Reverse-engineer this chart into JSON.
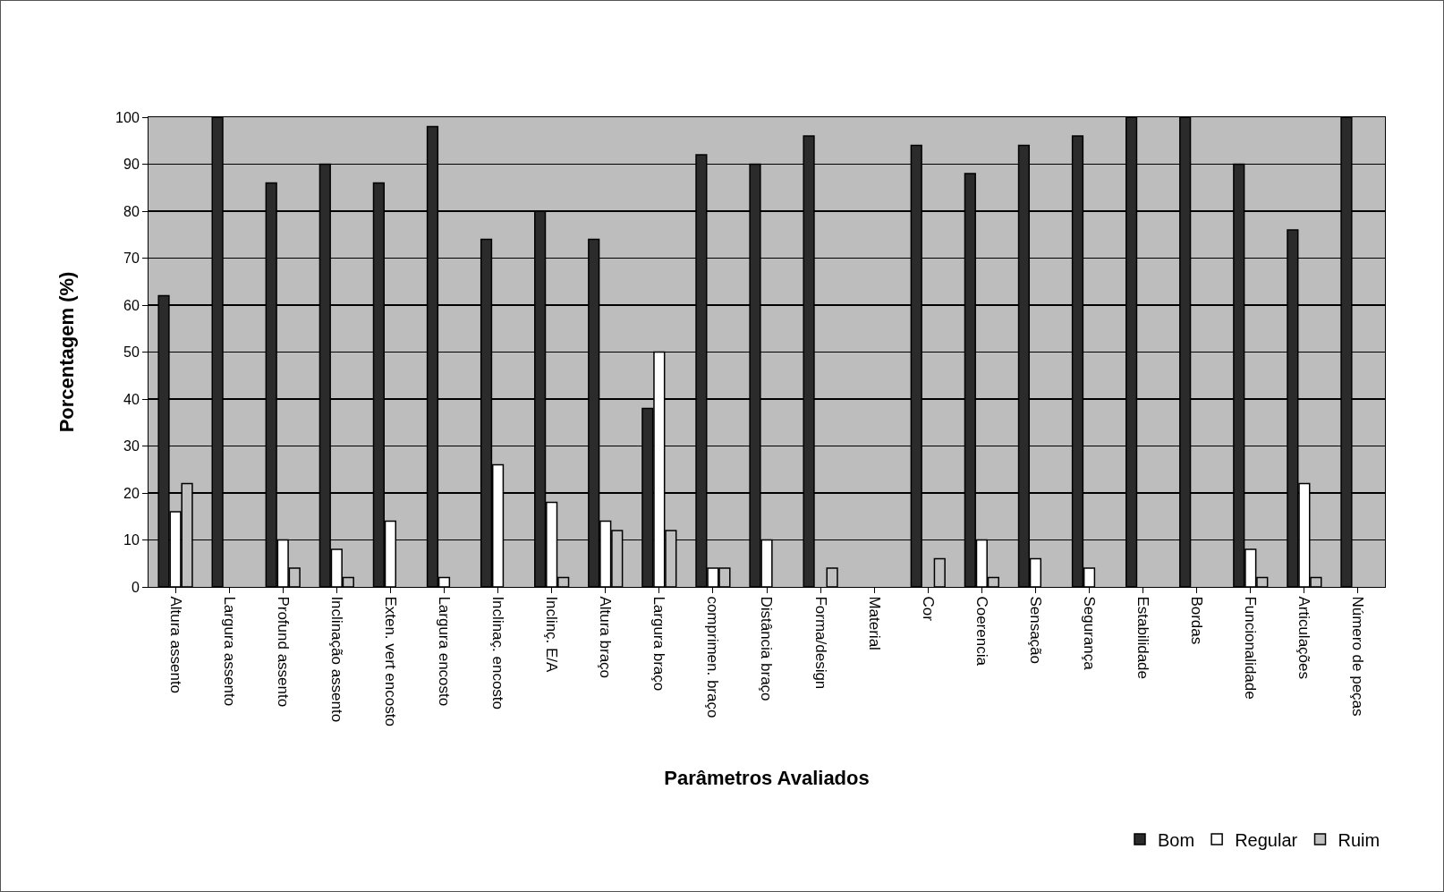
{
  "chart_data": {
    "type": "bar",
    "xlabel": "Parâmetros Avaliados",
    "ylabel": "Porcentagem (%)",
    "categories": [
      "Altura assento",
      "Largura assento",
      "Profund assento",
      "Inclinação assento",
      "Exten. vert encosto",
      "Largura encosto",
      "Inclinaç. encosto",
      "Inclinç. E/A",
      "Altura braço",
      "Largura braço",
      "comprimen. braço",
      "Distância braço",
      "Forma/design",
      "Material",
      "Cor",
      "Coerencia",
      "Sensação",
      "Segurança",
      "Estabilidade",
      "Bordas",
      "Funcionalidade",
      "Articulações",
      "Número de peças"
    ],
    "series": [
      {
        "name": "Bom",
        "color": "#2b2b2b",
        "values": [
          62,
          100,
          86,
          90,
          86,
          98,
          74,
          80,
          74,
          38,
          92,
          90,
          96,
          0,
          94,
          88,
          94,
          96,
          100,
          100,
          90,
          76,
          100
        ]
      },
      {
        "name": "Regular",
        "color": "#ffffff",
        "values": [
          16,
          0,
          10,
          8,
          14,
          2,
          26,
          18,
          14,
          50,
          4,
          10,
          0,
          0,
          0,
          10,
          6,
          4,
          0,
          0,
          8,
          22,
          0
        ]
      },
      {
        "name": "Ruim",
        "color": "#c0c0c0",
        "values": [
          22,
          0,
          4,
          2,
          0,
          0,
          0,
          2,
          12,
          12,
          4,
          0,
          4,
          0,
          6,
          2,
          0,
          0,
          0,
          0,
          2,
          2,
          0
        ]
      }
    ],
    "ylim": [
      0,
      100
    ],
    "yticks": [
      0,
      10,
      20,
      30,
      40,
      50,
      60,
      70,
      80,
      90,
      100
    ],
    "grid": "y",
    "legend": "bottom right"
  }
}
